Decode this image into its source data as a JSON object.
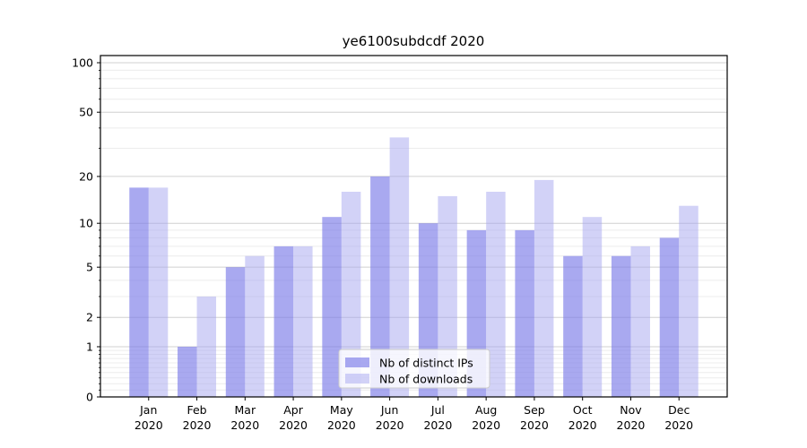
{
  "chart_data": {
    "type": "bar",
    "title": "ye6100subdcdf 2020",
    "categories": [
      "Jan",
      "Feb",
      "Mar",
      "Apr",
      "May",
      "Jun",
      "Jul",
      "Aug",
      "Sep",
      "Oct",
      "Nov",
      "Dec"
    ],
    "category_year_line": "2020",
    "series": [
      {
        "name": "Nb of distinct IPs",
        "color": "rgba(124,124,232,0.66)",
        "values": [
          17,
          1,
          5,
          7,
          11,
          20,
          10,
          9,
          9,
          6,
          6,
          8
        ]
      },
      {
        "name": "Nb of downloads",
        "color": "rgba(168,168,240,0.52)",
        "values": [
          17,
          3,
          6,
          7,
          16,
          35,
          15,
          16,
          19,
          11,
          7,
          13
        ]
      }
    ],
    "y_axis": {
      "scale": "log1p",
      "min": 0,
      "max": 110.5,
      "major_ticks": [
        0,
        1,
        2,
        5,
        10,
        20,
        50,
        100
      ],
      "minor_ticks": [
        0.1,
        0.2,
        0.3,
        0.4,
        0.5,
        0.6,
        0.7,
        0.8,
        0.9,
        3,
        4,
        6,
        7,
        8,
        9,
        30,
        40,
        60,
        70,
        80,
        90
      ]
    },
    "grid": {
      "major_color": "#d0d0d0",
      "minor_color": "#ececec"
    },
    "legend": {
      "position": "lower center",
      "background": "rgba(255,255,255,0.8)",
      "border_color": "#cccccc"
    },
    "spine_color": "#000000"
  }
}
